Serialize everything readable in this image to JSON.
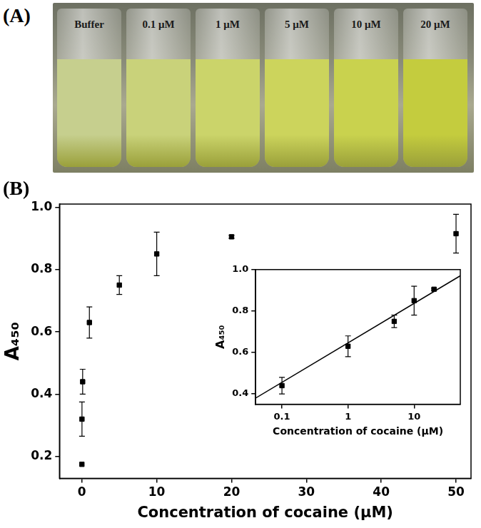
{
  "panels": {
    "A": {
      "label": "(A)",
      "vials": [
        "Buffer",
        "0.1 μM",
        "1 μM",
        "5 μM",
        "10 μM",
        "20 μM"
      ]
    },
    "B": {
      "label": "(B)"
    }
  },
  "chart_data": [
    {
      "type": "scatter",
      "x_label": "Concentration of cocaine (μM)",
      "y_label": "A₄₅₀",
      "x": [
        0,
        0.01,
        0.1,
        1,
        5,
        10,
        20,
        50
      ],
      "values": [
        0.175,
        0.32,
        0.44,
        0.63,
        0.75,
        0.85,
        0.905,
        0.915
      ],
      "errors": [
        0,
        0.055,
        0.04,
        0.05,
        0.03,
        0.07,
        0.005,
        0.062
      ],
      "color": "#000000",
      "marker": "square",
      "xlim": [
        -3,
        52
      ],
      "xticks": [
        0,
        10,
        20,
        30,
        40,
        50
      ],
      "ylim": [
        0.13,
        1.01
      ],
      "yticks": [
        0.2,
        0.4,
        0.6,
        0.8,
        {
          "value": 1,
          "label": "1.0"
        }
      ],
      "grid": false
    },
    {
      "type": "scatter",
      "x_label": "Concentration of cocaine (μM)",
      "y_label": "A₄₅₀",
      "log": "x",
      "series": [
        {
          "type": "scatter",
          "marker": "square",
          "color": "#000000",
          "x": [
            0.1,
            1,
            5,
            10,
            20
          ],
          "values": [
            0.44,
            0.63,
            0.75,
            0.85,
            0.905
          ],
          "errors": [
            0.04,
            0.05,
            0.03,
            0.07,
            0.005
          ]
        },
        {
          "type": "line",
          "line_style": "solid",
          "color": "#000000",
          "x": [
            0.04,
            50
          ],
          "values": [
            0.38,
            0.97
          ]
        }
      ],
      "xlim": [
        0.04,
        50
      ],
      "xticks": [
        0.1,
        1,
        10
      ],
      "ylim": [
        0.35,
        1
      ],
      "yticks": [
        0.4,
        0.6,
        0.8,
        {
          "value": 1,
          "label": "1.0"
        }
      ],
      "grid": false
    }
  ]
}
